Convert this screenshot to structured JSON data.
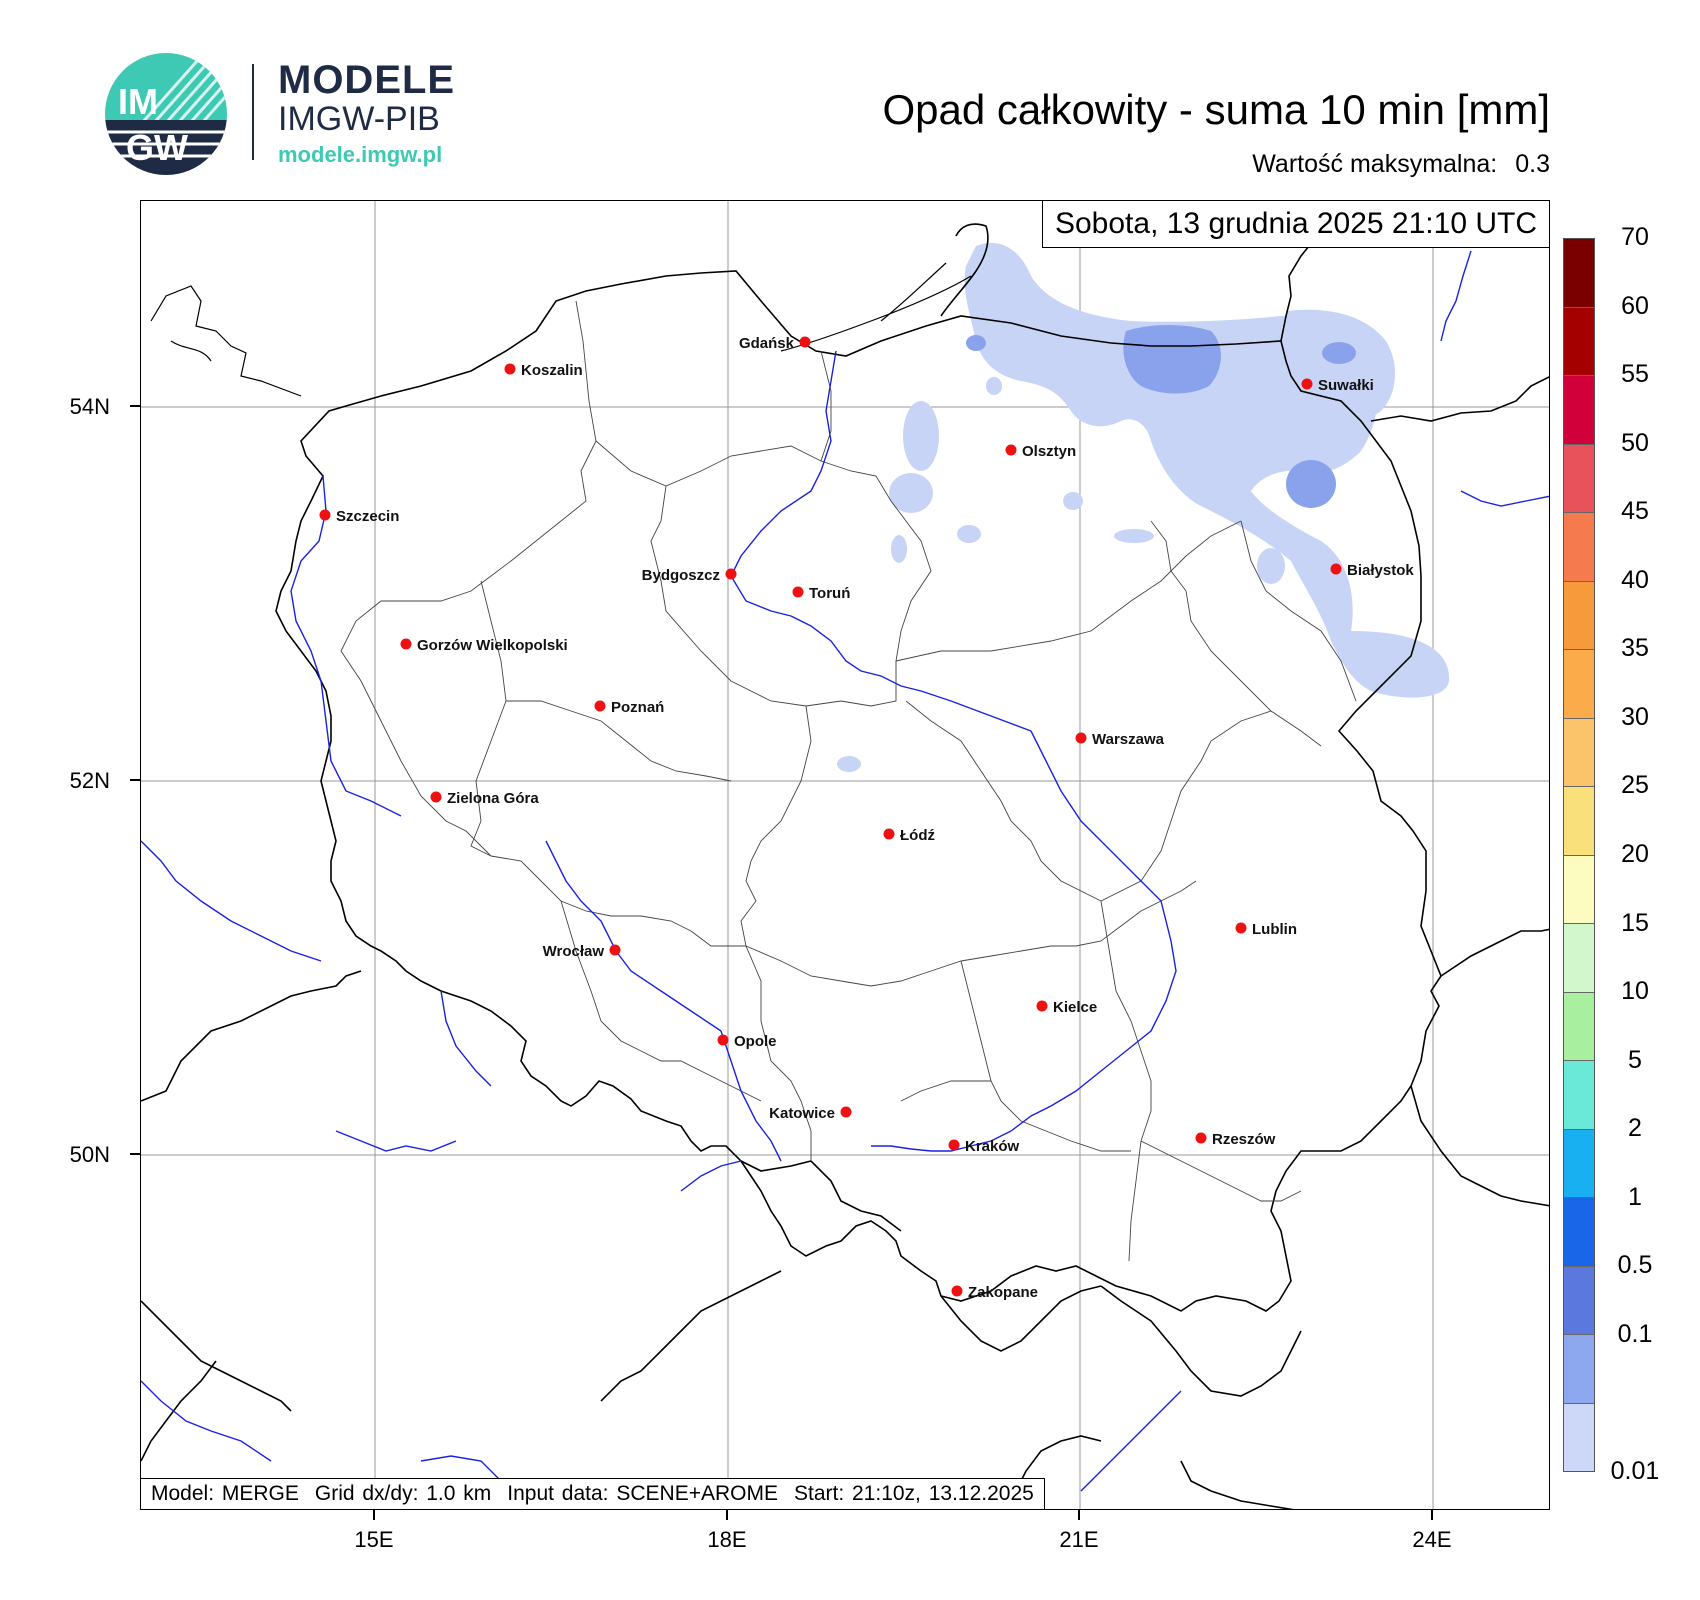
{
  "brand": {
    "logo_text_top": "IM",
    "logo_text_bottom": "GW",
    "name_line1": "MODELE",
    "name_line2": "IMGW-PIB",
    "url": "modele.imgw.pl",
    "colors": {
      "navy": "#1f2b44",
      "teal": "#3ec9b4"
    }
  },
  "title": "Opad całkowity - suma 10 min [mm]",
  "max_value": {
    "label": "Wartość maksymalna:",
    "value": "0.3"
  },
  "datetime": "Sobota, 13 grudnia 2025 21:10 UTC",
  "footer": {
    "model": "Model: MERGE",
    "grid": "Grid dx/dy: 1.0 km",
    "input": "Input data: SCENE+AROME",
    "start": "Start: 21:10z, 13.12.2025"
  },
  "axes": {
    "latitude_labels": [
      "54N",
      "52N",
      "50N"
    ],
    "longitude_labels": [
      "15E",
      "18E",
      "21E",
      "24E"
    ]
  },
  "cities": [
    {
      "name": "Gdańsk",
      "label_side": "left"
    },
    {
      "name": "Koszalin",
      "label_side": "right"
    },
    {
      "name": "Suwałki",
      "label_side": "right"
    },
    {
      "name": "Olsztyn",
      "label_side": "right"
    },
    {
      "name": "Szczecin",
      "label_side": "right"
    },
    {
      "name": "Białystok",
      "label_side": "right"
    },
    {
      "name": "Bydgoszcz",
      "label_side": "left"
    },
    {
      "name": "Toruń",
      "label_side": "right"
    },
    {
      "name": "Gorzów Wielkopolski",
      "label_side": "right"
    },
    {
      "name": "Poznań",
      "label_side": "right"
    },
    {
      "name": "Warszawa",
      "label_side": "right"
    },
    {
      "name": "Zielona Góra",
      "label_side": "right"
    },
    {
      "name": "Łódź",
      "label_side": "right"
    },
    {
      "name": "Lublin",
      "label_side": "right"
    },
    {
      "name": "Wrocław",
      "label_side": "left"
    },
    {
      "name": "Kielce",
      "label_side": "right"
    },
    {
      "name": "Opole",
      "label_side": "right"
    },
    {
      "name": "Katowice",
      "label_side": "left"
    },
    {
      "name": "Kraków",
      "label_side": "right"
    },
    {
      "name": "Rzeszów",
      "label_side": "right"
    },
    {
      "name": "Zakopane",
      "label_side": "right"
    }
  ],
  "colorbar": {
    "levels": [
      "70",
      "60",
      "55",
      "50",
      "45",
      "40",
      "35",
      "30",
      "25",
      "20",
      "15",
      "10",
      "5",
      "2",
      "1",
      "0.5",
      "0.1",
      "0.01"
    ],
    "colors": [
      "#7a0000",
      "#a40000",
      "#d2003a",
      "#e8525a",
      "#f57a4d",
      "#f79a3b",
      "#fbab4a",
      "#fcc46a",
      "#f9e07a",
      "#fdfcc0",
      "#d2f7cc",
      "#a8f0a0",
      "#6ae8d8",
      "#18b0f0",
      "#1a66e8",
      "#5a78de",
      "#8ea8ef",
      "#cdd8f8"
    ]
  },
  "precip_colors": {
    "light": "#c8d4f6",
    "medium": "#8aa2ec"
  },
  "map_colors": {
    "border": "#000000",
    "province": "#444444",
    "river": "#1a22e0",
    "city": "#ee1111",
    "grid": "#999999"
  }
}
